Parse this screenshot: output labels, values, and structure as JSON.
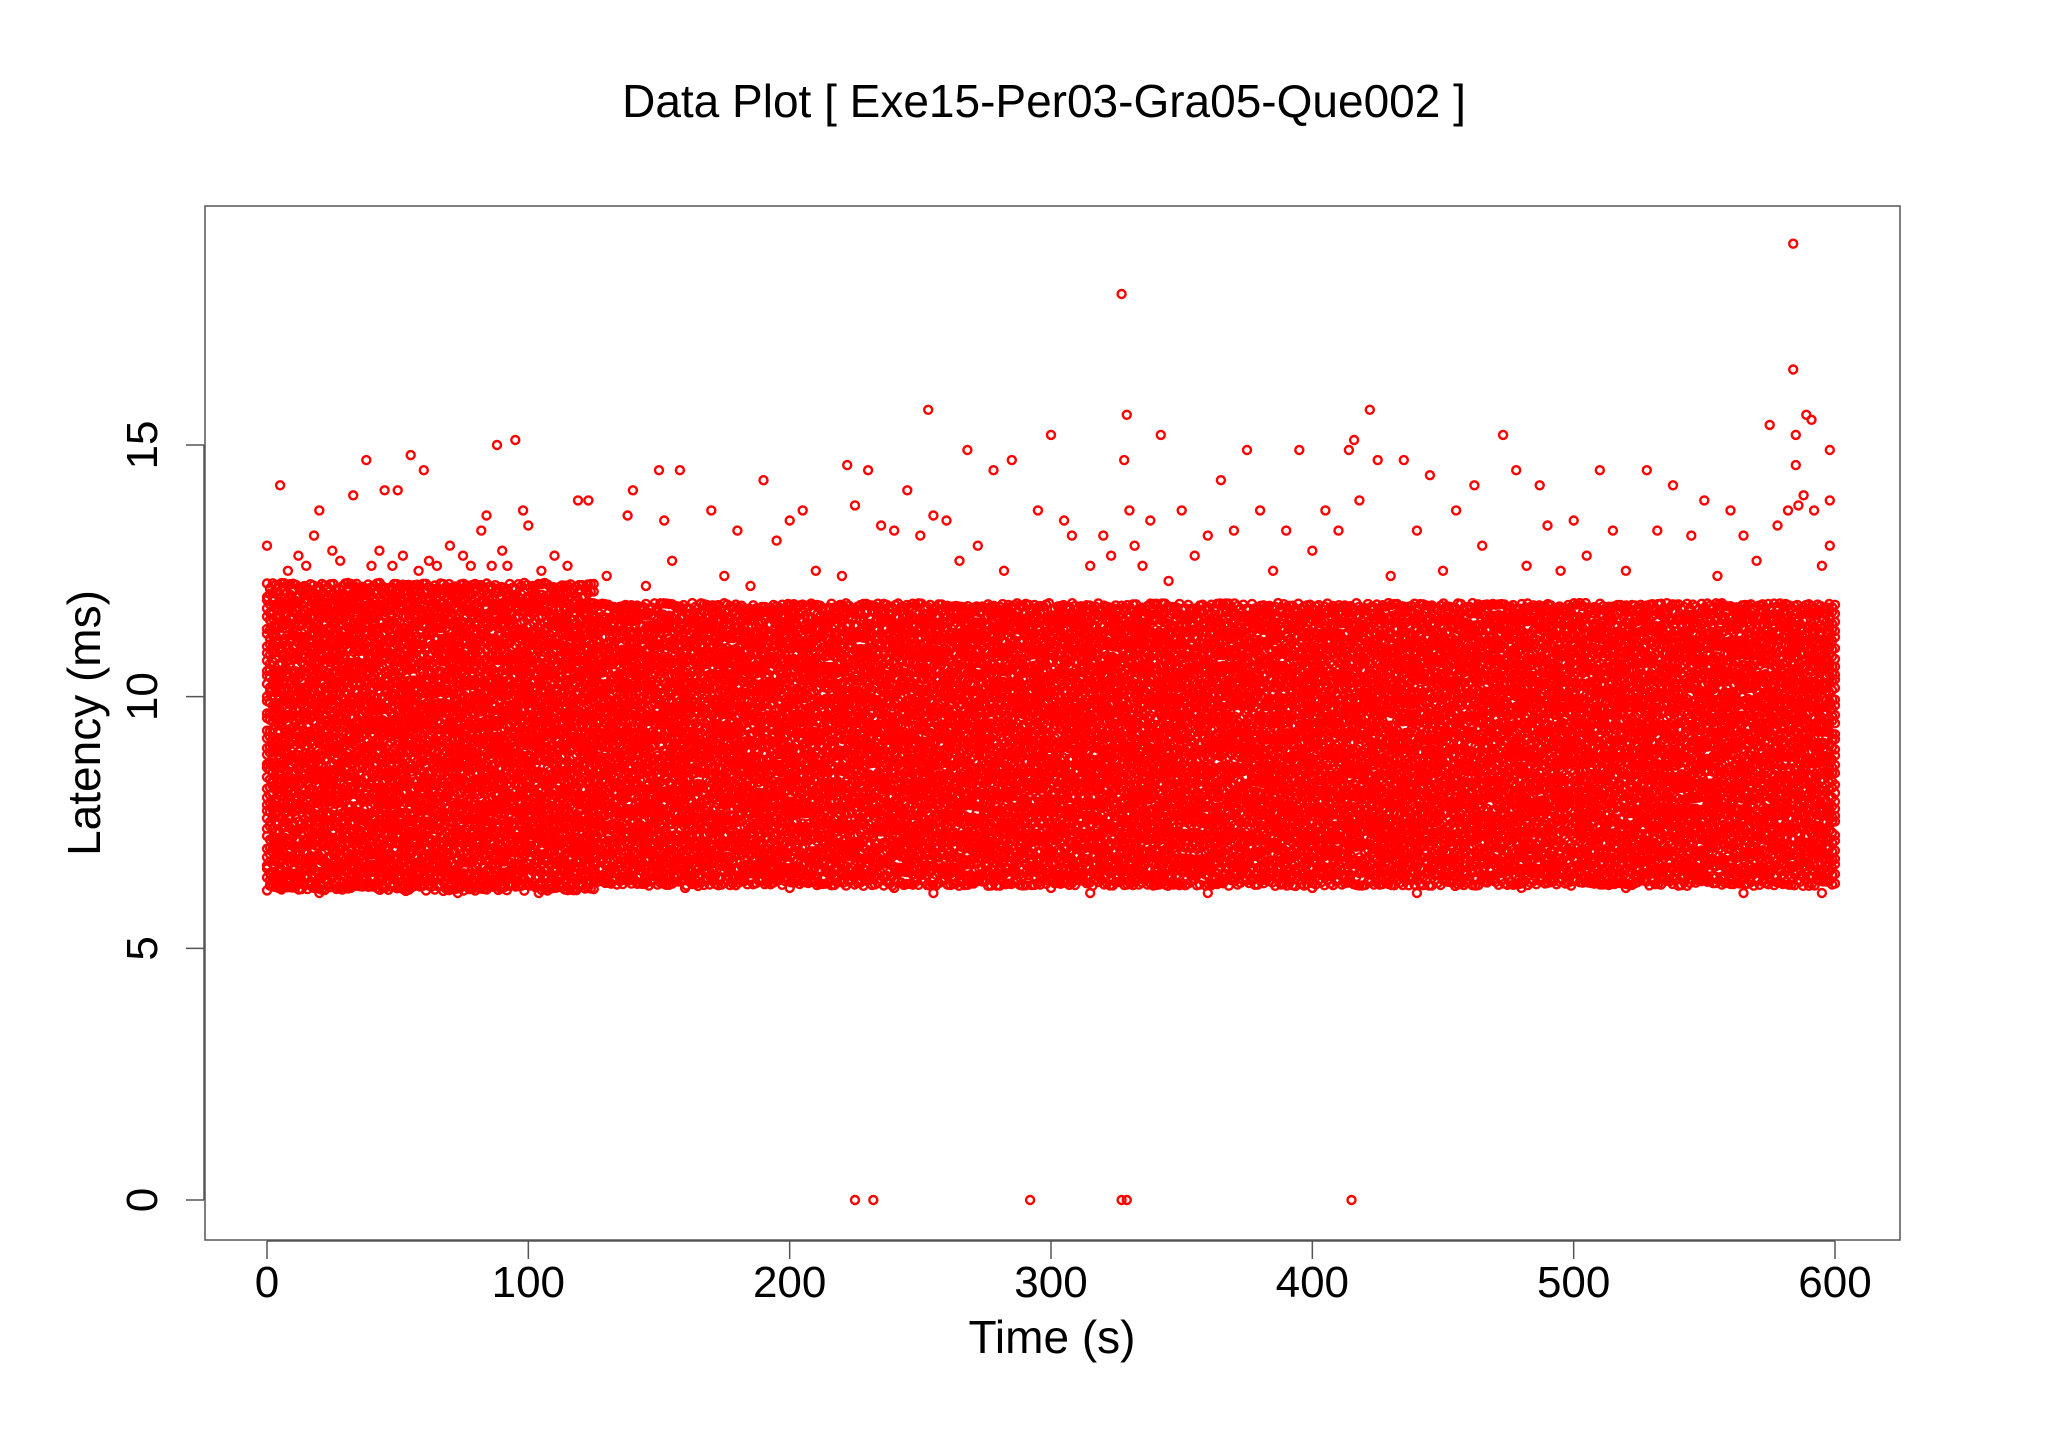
{
  "chart_data": {
    "type": "scatter",
    "title": "Data Plot [ Exe15-Per03-Gra05-Que002 ]",
    "xlabel": "Time (s)",
    "ylabel": "Latency (ms)",
    "xlim": [
      -24,
      624
    ],
    "ylim": [
      -0.75,
      19.8
    ],
    "xticks": [
      0,
      100,
      200,
      300,
      400,
      500,
      600
    ],
    "yticks": [
      0,
      5,
      10,
      15
    ],
    "marker": "open-circle",
    "color": "#ff0000",
    "grid": false,
    "legend": "none",
    "series": [
      {
        "bands": [
          {
            "x": [
              0,
              125
            ],
            "y": [
              6.2,
              12.2
            ]
          },
          {
            "x": [
              125,
              600
            ],
            "y": [
              6.3,
              11.8
            ]
          }
        ],
        "points": [
          [
            0,
            13.0
          ],
          [
            5,
            14.2
          ],
          [
            8,
            12.5
          ],
          [
            12,
            12.8
          ],
          [
            15,
            12.6
          ],
          [
            18,
            13.2
          ],
          [
            20,
            13.7
          ],
          [
            25,
            12.9
          ],
          [
            28,
            12.7
          ],
          [
            33,
            14.0
          ],
          [
            38,
            14.7
          ],
          [
            40,
            12.6
          ],
          [
            43,
            12.9
          ],
          [
            45,
            14.1
          ],
          [
            48,
            12.6
          ],
          [
            50,
            14.1
          ],
          [
            52,
            12.8
          ],
          [
            55,
            14.8
          ],
          [
            58,
            12.5
          ],
          [
            60,
            14.5
          ],
          [
            62,
            12.7
          ],
          [
            65,
            12.6
          ],
          [
            70,
            13.0
          ],
          [
            75,
            12.8
          ],
          [
            78,
            12.6
          ],
          [
            82,
            13.3
          ],
          [
            84,
            13.6
          ],
          [
            86,
            12.6
          ],
          [
            88,
            15.0
          ],
          [
            90,
            12.9
          ],
          [
            92,
            12.6
          ],
          [
            95,
            15.1
          ],
          [
            98,
            13.7
          ],
          [
            100,
            13.4
          ],
          [
            105,
            12.5
          ],
          [
            110,
            12.8
          ],
          [
            115,
            12.6
          ],
          [
            119,
            13.9
          ],
          [
            123,
            13.9
          ],
          [
            130,
            12.4
          ],
          [
            138,
            13.6
          ],
          [
            140,
            14.1
          ],
          [
            145,
            12.2
          ],
          [
            150,
            14.5
          ],
          [
            152,
            13.5
          ],
          [
            155,
            12.7
          ],
          [
            158,
            14.5
          ],
          [
            170,
            13.7
          ],
          [
            175,
            12.4
          ],
          [
            180,
            13.3
          ],
          [
            185,
            12.2
          ],
          [
            190,
            14.3
          ],
          [
            195,
            13.1
          ],
          [
            200,
            13.5
          ],
          [
            205,
            13.7
          ],
          [
            210,
            12.5
          ],
          [
            220,
            12.4
          ],
          [
            222,
            14.6
          ],
          [
            225,
            13.8
          ],
          [
            230,
            14.5
          ],
          [
            235,
            13.4
          ],
          [
            240,
            13.3
          ],
          [
            245,
            14.1
          ],
          [
            250,
            13.2
          ],
          [
            253,
            15.7
          ],
          [
            255,
            13.6
          ],
          [
            260,
            13.5
          ],
          [
            265,
            12.7
          ],
          [
            268,
            14.9
          ],
          [
            272,
            13.0
          ],
          [
            278,
            14.5
          ],
          [
            282,
            12.5
          ],
          [
            285,
            14.7
          ],
          [
            295,
            13.7
          ],
          [
            300,
            15.2
          ],
          [
            305,
            13.5
          ],
          [
            308,
            13.2
          ],
          [
            315,
            12.6
          ],
          [
            320,
            13.2
          ],
          [
            323,
            12.8
          ],
          [
            327,
            18.0
          ],
          [
            329,
            15.6
          ],
          [
            328,
            14.7
          ],
          [
            330,
            13.7
          ],
          [
            332,
            13.0
          ],
          [
            335,
            12.6
          ],
          [
            338,
            13.5
          ],
          [
            342,
            15.2
          ],
          [
            345,
            12.3
          ],
          [
            350,
            13.7
          ],
          [
            355,
            12.8
          ],
          [
            360,
            13.2
          ],
          [
            365,
            14.3
          ],
          [
            370,
            13.3
          ],
          [
            375,
            14.9
          ],
          [
            380,
            13.7
          ],
          [
            385,
            12.5
          ],
          [
            390,
            13.3
          ],
          [
            395,
            14.9
          ],
          [
            400,
            12.9
          ],
          [
            405,
            13.7
          ],
          [
            410,
            13.3
          ],
          [
            414,
            14.9
          ],
          [
            416,
            15.1
          ],
          [
            418,
            13.9
          ],
          [
            422,
            15.7
          ],
          [
            425,
            14.7
          ],
          [
            430,
            12.4
          ],
          [
            435,
            14.7
          ],
          [
            440,
            13.3
          ],
          [
            445,
            14.4
          ],
          [
            450,
            12.5
          ],
          [
            455,
            13.7
          ],
          [
            462,
            14.2
          ],
          [
            465,
            13.0
          ],
          [
            473,
            15.2
          ],
          [
            478,
            14.5
          ],
          [
            482,
            12.6
          ],
          [
            487,
            14.2
          ],
          [
            490,
            13.4
          ],
          [
            495,
            12.5
          ],
          [
            500,
            13.5
          ],
          [
            505,
            12.8
          ],
          [
            510,
            14.5
          ],
          [
            515,
            13.3
          ],
          [
            520,
            12.5
          ],
          [
            528,
            14.5
          ],
          [
            532,
            13.3
          ],
          [
            538,
            14.2
          ],
          [
            545,
            13.2
          ],
          [
            550,
            13.9
          ],
          [
            555,
            12.4
          ],
          [
            560,
            13.7
          ],
          [
            565,
            13.2
          ],
          [
            570,
            12.7
          ],
          [
            575,
            15.4
          ],
          [
            578,
            13.4
          ],
          [
            582,
            13.7
          ],
          [
            584,
            19.0
          ],
          [
            584,
            16.5
          ],
          [
            585,
            15.2
          ],
          [
            585,
            14.6
          ],
          [
            586,
            13.8
          ],
          [
            588,
            14.0
          ],
          [
            589,
            15.6
          ],
          [
            591,
            15.5
          ],
          [
            592,
            13.7
          ],
          [
            595,
            12.6
          ],
          [
            598,
            14.9
          ],
          [
            598,
            13.9
          ],
          [
            598,
            13.0
          ],
          [
            6,
            6.2
          ],
          [
            20,
            6.1
          ],
          [
            32,
            6.2
          ],
          [
            55,
            6.2
          ],
          [
            73,
            6.1
          ],
          [
            90,
            6.2
          ],
          [
            104,
            6.1
          ],
          [
            118,
            6.2
          ],
          [
            160,
            6.2
          ],
          [
            200,
            6.2
          ],
          [
            240,
            6.2
          ],
          [
            255,
            6.1
          ],
          [
            300,
            6.2
          ],
          [
            315,
            6.1
          ],
          [
            360,
            6.1
          ],
          [
            400,
            6.2
          ],
          [
            440,
            6.1
          ],
          [
            480,
            6.2
          ],
          [
            520,
            6.2
          ],
          [
            565,
            6.1
          ],
          [
            595,
            6.1
          ],
          [
            225,
            0
          ],
          [
            232,
            0
          ],
          [
            292,
            0
          ],
          [
            327,
            0
          ],
          [
            329,
            0
          ],
          [
            415,
            0
          ]
        ]
      }
    ]
  }
}
